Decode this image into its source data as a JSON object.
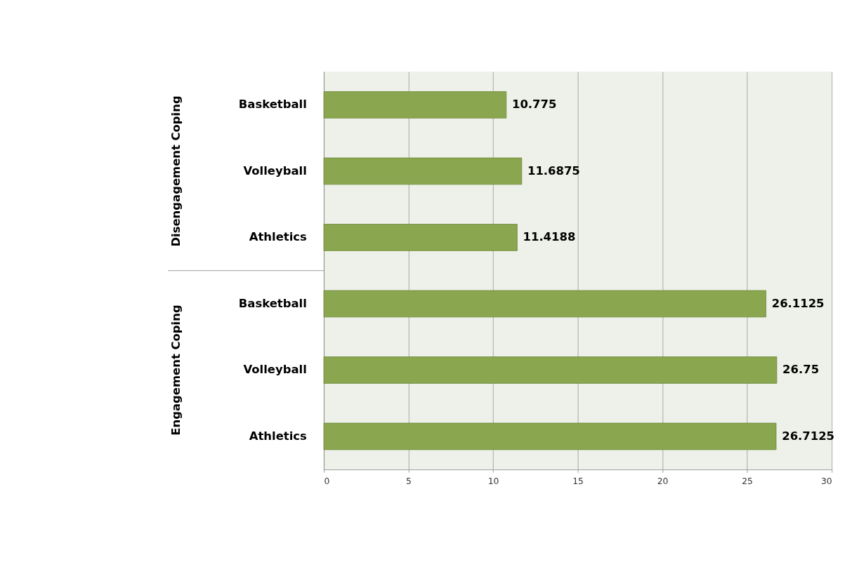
{
  "chart_data": {
    "type": "bar",
    "orientation": "horizontal",
    "categories": [
      "Basketball",
      "Volleyball",
      "Athletics",
      "Basketball",
      "Volleyball",
      "Athletics"
    ],
    "values": [
      10.775,
      11.6875,
      11.4188,
      26.1125,
      26.75,
      26.7125
    ],
    "color": "#8aa64f",
    "xlim": [
      0,
      30
    ],
    "xticks": [
      0,
      5,
      10,
      15,
      20,
      25,
      30
    ],
    "grid": "x",
    "data_labels": true,
    "annotations": [
      "Disengagement Coping",
      "Engagement Coping"
    ]
  }
}
